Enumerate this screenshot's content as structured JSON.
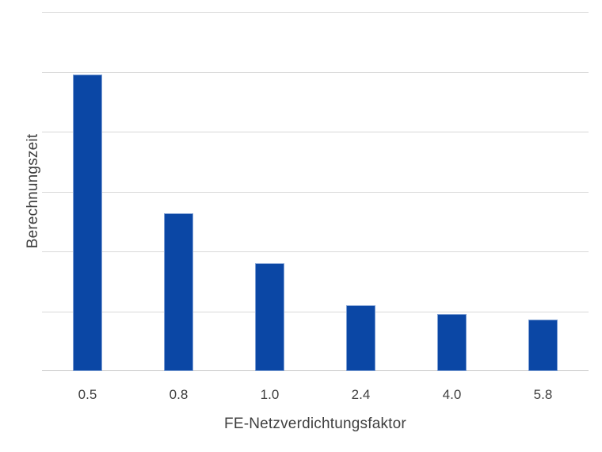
{
  "page": {
    "background_color": "#FFFFFF"
  },
  "chart_data": {
    "type": "bar",
    "title": "",
    "categories": [
      "0.5",
      "0.8",
      "1.0",
      "2.4",
      "4.0",
      "5.8"
    ],
    "values": [
      4.95,
      2.64,
      1.8,
      1.1,
      0.95,
      0.86
    ],
    "xlabel": "FE-Netzverdichtungsfaktor",
    "ylabel": "Berechnungszeit",
    "ylim": [
      0,
      6
    ],
    "y_tick_interval": 1,
    "y_tick_labels_visible": false,
    "grid": "horizontal",
    "legend": "none",
    "bar_color": "#0B47A5",
    "bar_border_color": "#7E9FD4",
    "gridline_color": "#D9D9D9",
    "axis_line_color": "#C8C8C8",
    "text_color": "#404040"
  }
}
